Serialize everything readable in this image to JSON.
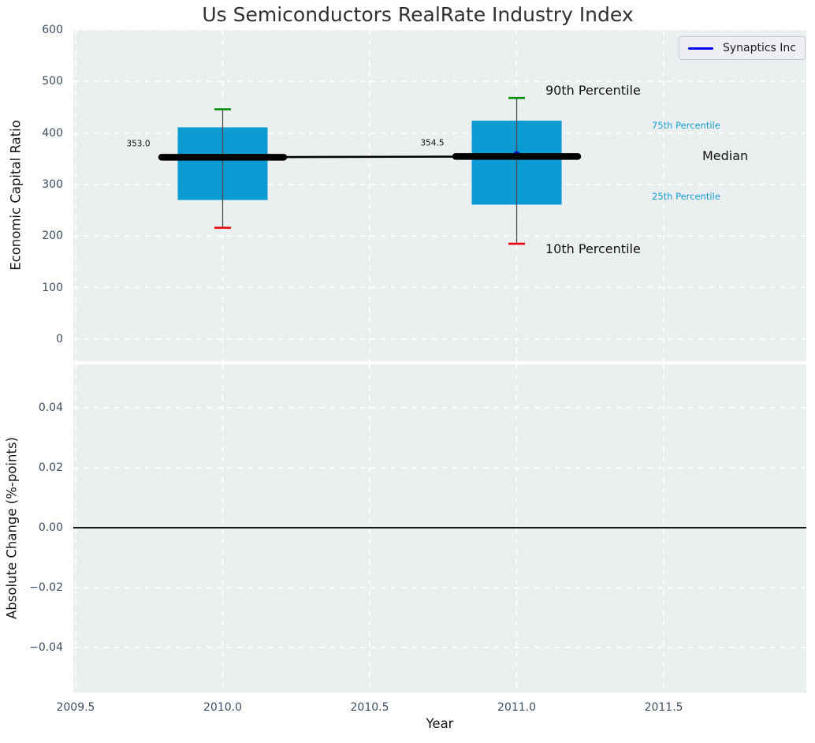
{
  "figure": {
    "title": "Us Semiconductors RealRate Industry Index"
  },
  "legend": {
    "label": "Synaptics Inc"
  },
  "annotations": {
    "p90": "90th Percentile",
    "p75": "75th Percentile",
    "median": "Median",
    "p25": "25th Percentile",
    "p10": "10th Percentile"
  },
  "colors": {
    "plot_background": "#ebeff0",
    "grid": "#ffffff",
    "box_fill": "#0a9bd2",
    "p90_cap": "#068e06",
    "p10_cap": "#e8030c",
    "median_line": "#000000",
    "series_marker": "#0000d8",
    "legend_line": "#0000f5",
    "tick_label": "#3e4e62",
    "percentile_label": "#179cd4"
  },
  "chart_data": [
    {
      "type": "boxplot",
      "title": "Us Semiconductors RealRate Industry Index",
      "xlabel": "Year",
      "ylabel": "Economic Capital Ratio",
      "xlim": [
        2009.492,
        2011.985
      ],
      "ylim": [
        -43,
        600
      ],
      "grid": true,
      "legend_position": "upper right",
      "ytick_labels": [
        "600",
        "500",
        "400",
        "300",
        "200",
        "100",
        "0"
      ],
      "ytick_values": [
        600,
        500,
        400,
        300,
        200,
        100,
        0
      ],
      "xtick_values": [
        2009.5,
        2010.0,
        2010.5,
        2011.0,
        2011.5
      ],
      "boxes": [
        {
          "x": 2010,
          "p10": 216,
          "p25": 270,
          "median": 353.0,
          "p75": 411,
          "p90": 446,
          "median_label": "353.0"
        },
        {
          "x": 2011,
          "p10": 185,
          "p25": 261,
          "median": 354.5,
          "p75": 424,
          "p90": 468,
          "median_label": "354.5"
        }
      ],
      "median_line": {
        "x": [
          2010,
          2011
        ],
        "y": [
          353.0,
          354.5
        ]
      },
      "series": [
        {
          "name": "Synaptics Inc",
          "x": [
            2011
          ],
          "y": [
            358
          ]
        }
      ]
    },
    {
      "type": "line",
      "xlabel": "Year",
      "ylabel": "Absolute Change (%-points)",
      "xlim": [
        2009.492,
        2011.985
      ],
      "ylim": [
        -0.055,
        0.0545
      ],
      "grid": true,
      "ytick_labels": [
        "0.04",
        "0.02",
        "0.00",
        "−0.02",
        "−0.04"
      ],
      "ytick_values": [
        0.04,
        0.02,
        0,
        -0.02,
        -0.04
      ],
      "xtick_labels": [
        "2009.5",
        "2010.0",
        "2010.5",
        "2011.0",
        "2011.5"
      ],
      "xtick_values": [
        2009.5,
        2010.0,
        2010.5,
        2011.0,
        2011.5
      ],
      "zero_line": 0.0
    }
  ]
}
